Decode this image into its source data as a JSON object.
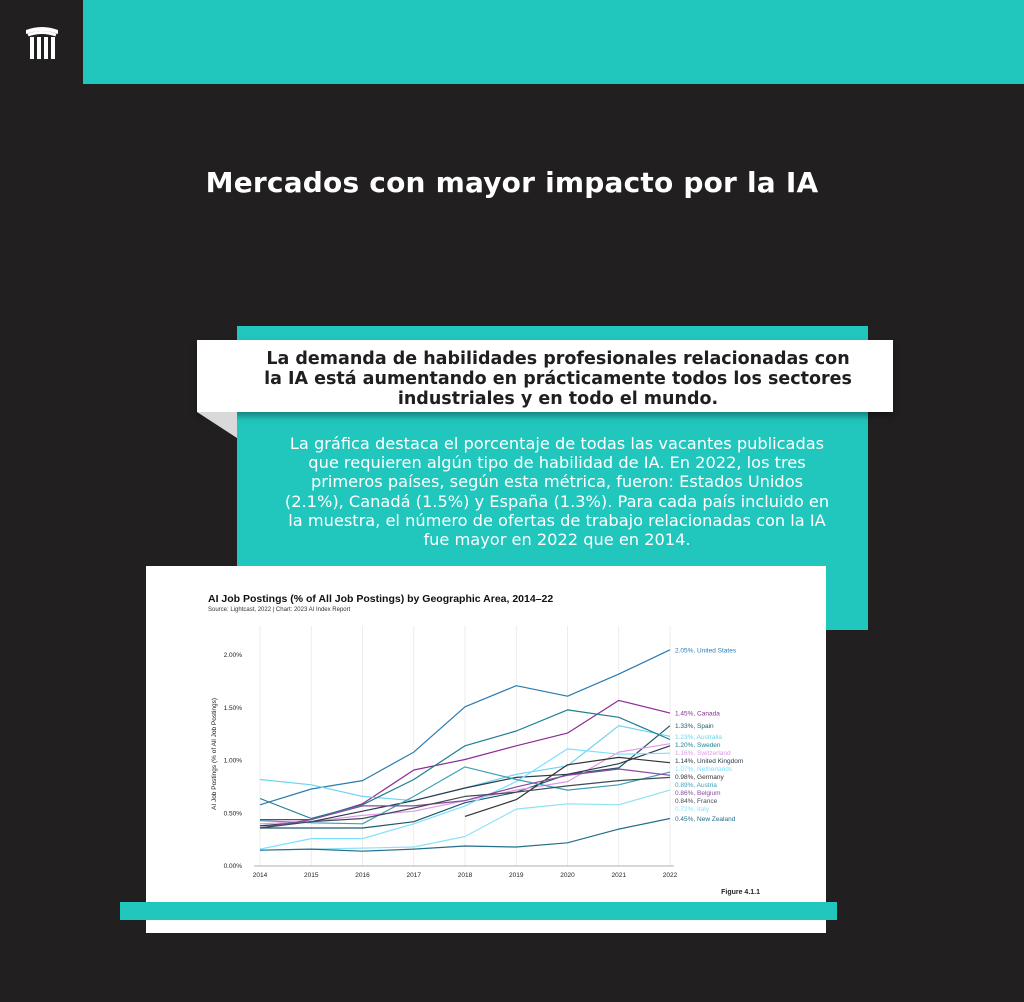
{
  "header": {
    "logo_icon": "stylized-columns-logo-icon"
  },
  "page_title": "Mercados con mayor impacto por la IA",
  "headline": "La demanda de habilidades profesionales relacionadas con la IA está aumentando en prácticamente todos los sectores industriales y en todo el mundo.",
  "body": "La gráfica destaca el porcentaje de todas las vacantes publicadas que requieren algún tipo de habilidad de IA. En 2022, los tres primeros países, según esta métrica, fueron: Estados Unidos (2.1%), Canadá (1.5%) y España (1.3%). Para cada país incluido en la muestra, el número de ofertas de trabajo relacionadas con la IA fue mayor en 2022 que en 2014.",
  "colors": {
    "background": "#221f20",
    "accent": "#21c6bd",
    "card": "#ffffff"
  },
  "chart_data": {
    "type": "line",
    "title": "AI Job Postings (% of All Job Postings) by Geographic Area, 2014–22",
    "subtitle": "Source: Lightcast, 2022 | Chart: 2023 AI Index Report",
    "ylabel": "AI Job Postings (% of All Job Postings)",
    "xlabel": "",
    "figure_label": "Figure 4.1.1",
    "x": [
      2014,
      2015,
      2016,
      2017,
      2018,
      2019,
      2020,
      2021,
      2022
    ],
    "ylim": [
      0,
      2.2
    ],
    "yticks": [
      "0.00%",
      "0.50%",
      "1.00%",
      "1.50%",
      "2.00%"
    ],
    "ytick_values": [
      0,
      0.5,
      1.0,
      1.5,
      2.0
    ],
    "grid": "vertical",
    "series": [
      {
        "name": "United States",
        "end_label": "2.05%, United States",
        "color": "#2b7bb0",
        "values": [
          0.58,
          0.73,
          0.81,
          1.08,
          1.51,
          1.71,
          1.61,
          1.82,
          2.05
        ]
      },
      {
        "name": "Canada",
        "end_label": "1.45%, Canada",
        "color": "#8e2a96",
        "values": [
          0.44,
          0.44,
          0.59,
          0.91,
          1.01,
          1.14,
          1.26,
          1.57,
          1.45
        ]
      },
      {
        "name": "Spain",
        "end_label": "1.33%, Spain",
        "color": "#1e5a6a",
        "values": [
          0.36,
          0.36,
          0.36,
          0.42,
          0.6,
          0.7,
          0.87,
          0.93,
          1.33
        ]
      },
      {
        "name": "Australia",
        "end_label": "1.23%, Australia",
        "color": "#6fd3ee",
        "values": [
          0.82,
          0.77,
          0.66,
          0.62,
          0.74,
          0.87,
          0.95,
          1.33,
          1.23
        ]
      },
      {
        "name": "Sweden",
        "end_label": "1.20%, Sweden",
        "color": "#1d7f8f",
        "values": [
          0.64,
          0.45,
          0.58,
          0.82,
          1.14,
          1.28,
          1.48,
          1.41,
          1.2
        ]
      },
      {
        "name": "Switzerland",
        "end_label": "1.16%, Switzerland",
        "color": "#e199e8",
        "values": [
          0.4,
          0.42,
          0.48,
          0.52,
          0.62,
          0.72,
          0.8,
          1.08,
          1.16
        ]
      },
      {
        "name": "United Kingdom",
        "end_label": "1.14%, United Kingdom",
        "color": "#2b3a4c",
        "values": [
          0.38,
          0.42,
          0.52,
          0.62,
          0.74,
          0.84,
          0.87,
          0.97,
          1.14
        ]
      },
      {
        "name": "Netherlands",
        "end_label": "1.07%, Netherlands",
        "color": "#7ee0ff",
        "values": [
          0.16,
          0.26,
          0.26,
          0.4,
          0.57,
          0.8,
          1.11,
          1.06,
          1.07
        ]
      },
      {
        "name": "Germany",
        "end_label": "0.98%, Germany",
        "color": "#333333",
        "values": [
          null,
          null,
          null,
          null,
          0.47,
          0.63,
          0.96,
          1.03,
          0.98
        ]
      },
      {
        "name": "Austria",
        "end_label": "0.89%, Austria",
        "color": "#3f9fb8",
        "values": [
          0.43,
          0.41,
          0.4,
          0.66,
          0.94,
          0.82,
          0.72,
          0.77,
          0.89
        ]
      },
      {
        "name": "Belgium",
        "end_label": "0.86%, Belgium",
        "color": "#8c48a0",
        "values": [
          0.36,
          0.44,
          0.57,
          0.57,
          0.62,
          0.75,
          0.86,
          0.92,
          0.86
        ]
      },
      {
        "name": "France",
        "end_label": "0.84%, France",
        "color": "#404b55",
        "values": [
          0.36,
          0.42,
          0.45,
          0.55,
          0.66,
          0.7,
          0.76,
          0.81,
          0.84
        ]
      },
      {
        "name": "Italy",
        "end_label": "0.72%, Italy",
        "color": "#8ee2f2",
        "values": [
          0.15,
          0.16,
          0.17,
          0.18,
          0.28,
          0.54,
          0.59,
          0.58,
          0.72
        ]
      },
      {
        "name": "New Zealand",
        "end_label": "0.45%, New Zealand",
        "color": "#236e8a",
        "values": [
          0.15,
          0.16,
          0.14,
          0.16,
          0.19,
          0.18,
          0.22,
          0.35,
          0.45
        ]
      }
    ]
  }
}
